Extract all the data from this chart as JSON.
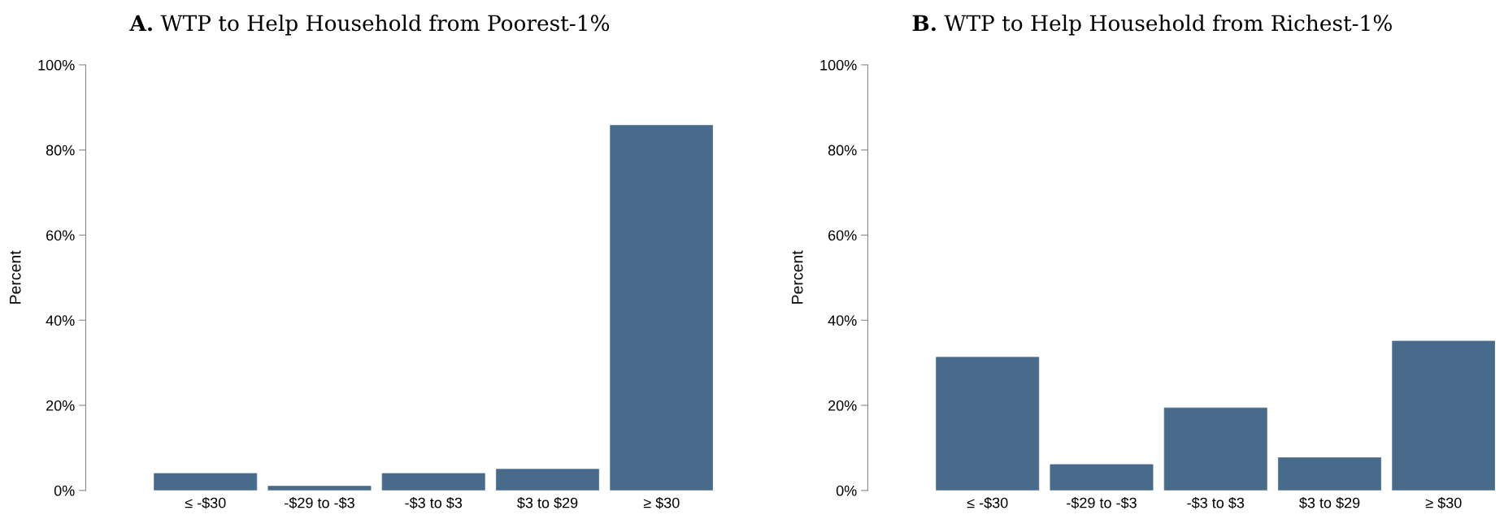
{
  "chart_data": [
    {
      "type": "bar",
      "title": "A. WTP to Help Household from Poorest-1%",
      "ylabel": "Percent",
      "categories": [
        "≤ -$30",
        "-$29 to -$3",
        "-$3 to $3",
        "$3 to $29",
        "≥ $30"
      ],
      "values": [
        4.0,
        1.0,
        4.0,
        5.0,
        85.8
      ],
      "color": "#486b8c",
      "ylim": [
        0,
        100
      ],
      "yticks": [
        {
          "value": 0,
          "label": "0%"
        },
        {
          "value": 20,
          "label": "20%"
        },
        {
          "value": 40,
          "label": "40%"
        },
        {
          "value": 60,
          "label": "60%"
        },
        {
          "value": 80,
          "label": "80%"
        },
        {
          "value": 100,
          "label": "100%"
        }
      ],
      "grid": false,
      "legend": false
    },
    {
      "type": "bar",
      "title": "B. WTP to Help Household from Richest-1%",
      "ylabel": "Percent",
      "categories": [
        "≤ -$30",
        "-$29 to -$3",
        "-$3 to $3",
        "$3 to $29",
        "≥ $30"
      ],
      "values": [
        31.3,
        6.1,
        19.4,
        7.7,
        35.1
      ],
      "color": "#486b8c",
      "ylim": [
        0,
        100
      ],
      "yticks": [
        {
          "value": 0,
          "label": "0%"
        },
        {
          "value": 20,
          "label": "20%"
        },
        {
          "value": 40,
          "label": "40%"
        },
        {
          "value": 60,
          "label": "60%"
        },
        {
          "value": 80,
          "label": "80%"
        },
        {
          "value": 100,
          "label": "100%"
        }
      ],
      "grid": false,
      "legend": false
    }
  ]
}
